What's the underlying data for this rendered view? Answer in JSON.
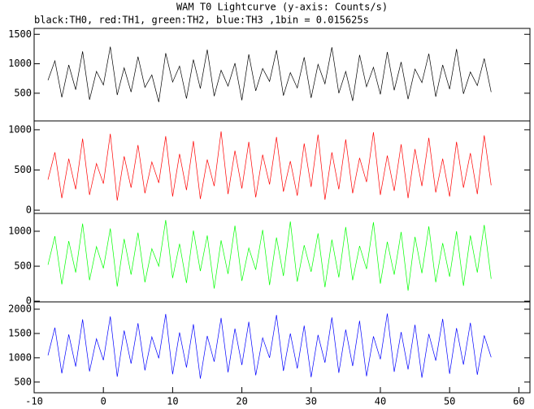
{
  "chart_data": [
    {
      "type": "line",
      "title": "WAM T0 Lightcurve (y-axis: Counts/s)",
      "subtitle": "black:TH0, red:TH1, green:TH2, blue:TH3 ,1bin = 0.015625s",
      "xlim": [
        -10,
        61.6
      ],
      "ylim": [
        30,
        1600
      ],
      "yticks": [
        500,
        1000,
        1500
      ],
      "x": [
        -8,
        -7,
        -6,
        -5,
        -4,
        -3,
        -2,
        -1,
        0,
        1,
        2,
        3,
        4,
        5,
        6,
        7,
        8,
        9,
        10,
        11,
        12,
        13,
        14,
        15,
        16,
        17,
        18,
        19,
        20,
        21,
        22,
        23,
        24,
        25,
        26,
        27,
        28,
        29,
        30,
        31,
        32,
        33,
        34,
        35,
        36,
        37,
        38,
        39,
        40,
        41,
        42,
        43,
        44,
        45,
        46,
        47,
        48,
        49,
        50,
        51,
        52,
        53,
        54,
        55,
        56
      ],
      "series": [
        {
          "color": "#000000",
          "values": [
            720,
            1050,
            430,
            980,
            560,
            1210,
            390,
            870,
            640,
            1290,
            470,
            930,
            520,
            1120,
            600,
            810,
            350,
            1180,
            690,
            960,
            410,
            1070,
            580,
            1240,
            450,
            890,
            620,
            1010,
            380,
            1160,
            540,
            920,
            700,
            1230,
            460,
            850,
            590,
            1110,
            420,
            990,
            660,
            1280,
            500,
            870,
            370,
            1150,
            610,
            940,
            480,
            1200,
            550,
            1030,
            400,
            910,
            680,
            1170,
            440,
            980,
            570,
            1250,
            490,
            860,
            630,
            1090,
            520
          ]
        }
      ]
    },
    {
      "type": "line",
      "xlim": [
        -10,
        61.6
      ],
      "ylim": [
        -40,
        1110
      ],
      "yticks": [
        0,
        500,
        1000
      ],
      "x": [
        -8,
        -7,
        -6,
        -5,
        -4,
        -3,
        -2,
        -1,
        0,
        1,
        2,
        3,
        4,
        5,
        6,
        7,
        8,
        9,
        10,
        11,
        12,
        13,
        14,
        15,
        16,
        17,
        18,
        19,
        20,
        21,
        22,
        23,
        24,
        25,
        26,
        27,
        28,
        29,
        30,
        31,
        32,
        33,
        34,
        35,
        36,
        37,
        38,
        39,
        40,
        41,
        42,
        43,
        44,
        45,
        46,
        47,
        48,
        49,
        50,
        51,
        52,
        53,
        54,
        55,
        56
      ],
      "series": [
        {
          "color": "#ff0000",
          "values": [
            380,
            720,
            150,
            640,
            260,
            890,
            190,
            580,
            330,
            950,
            120,
            670,
            280,
            810,
            210,
            600,
            340,
            920,
            170,
            700,
            250,
            860,
            140,
            630,
            300,
            980,
            200,
            740,
            270,
            850,
            160,
            690,
            320,
            910,
            230,
            610,
            180,
            830,
            290,
            940,
            130,
            720,
            260,
            880,
            210,
            650,
            350,
            970,
            190,
            680,
            240,
            820,
            150,
            760,
            300,
            900,
            220,
            640,
            170,
            850,
            280,
            710,
            200,
            930,
            310
          ]
        }
      ]
    },
    {
      "type": "line",
      "xlim": [
        -10,
        61.6
      ],
      "ylim": [
        -10,
        1255
      ],
      "yticks": [
        0,
        500,
        1000
      ],
      "x": [
        -8,
        -7,
        -6,
        -5,
        -4,
        -3,
        -2,
        -1,
        0,
        1,
        2,
        3,
        4,
        5,
        6,
        7,
        8,
        9,
        10,
        11,
        12,
        13,
        14,
        15,
        16,
        17,
        18,
        19,
        20,
        21,
        22,
        23,
        24,
        25,
        26,
        27,
        28,
        29,
        30,
        31,
        32,
        33,
        34,
        35,
        36,
        37,
        38,
        39,
        40,
        41,
        42,
        43,
        44,
        45,
        46,
        47,
        48,
        49,
        50,
        51,
        52,
        53,
        54,
        55,
        56
      ],
      "series": [
        {
          "color": "#00ff00",
          "values": [
            520,
            930,
            240,
            860,
            410,
            1110,
            300,
            780,
            470,
            1040,
            210,
            890,
            380,
            980,
            270,
            750,
            500,
            1160,
            330,
            820,
            260,
            1010,
            430,
            940,
            180,
            870,
            390,
            1080,
            290,
            760,
            450,
            1020,
            230,
            910,
            360,
            1140,
            280,
            800,
            420,
            970,
            200,
            880,
            340,
            1060,
            300,
            790,
            460,
            1130,
            250,
            850,
            380,
            990,
            150,
            920,
            400,
            1070,
            270,
            830,
            350,
            1000,
            220,
            940,
            410,
            1090,
            320
          ]
        }
      ]
    },
    {
      "type": "line",
      "xlim": [
        -10,
        61.6
      ],
      "ylim": [
        280,
        2150
      ],
      "yticks": [
        500,
        1000,
        1500,
        2000
      ],
      "xticks": [
        -10,
        0,
        10,
        20,
        30,
        40,
        50,
        60
      ],
      "x": [
        -8,
        -7,
        -6,
        -5,
        -4,
        -3,
        -2,
        -1,
        0,
        1,
        2,
        3,
        4,
        5,
        6,
        7,
        8,
        9,
        10,
        11,
        12,
        13,
        14,
        15,
        16,
        17,
        18,
        19,
        20,
        21,
        22,
        23,
        24,
        25,
        26,
        27,
        28,
        29,
        30,
        31,
        32,
        33,
        34,
        35,
        36,
        37,
        38,
        39,
        40,
        41,
        42,
        43,
        44,
        45,
        46,
        47,
        48,
        49,
        50,
        51,
        52,
        53,
        54,
        55,
        56
      ],
      "series": [
        {
          "color": "#0000ff",
          "values": [
            1050,
            1620,
            680,
            1480,
            820,
            1790,
            720,
            1390,
            950,
            1850,
            610,
            1560,
            880,
            1710,
            740,
            1430,
            990,
            1900,
            660,
            1520,
            800,
            1690,
            570,
            1450,
            920,
            1820,
            700,
            1600,
            850,
            1740,
            640,
            1410,
            1000,
            1880,
            730,
            1500,
            780,
            1660,
            600,
            1470,
            900,
            1830,
            690,
            1580,
            830,
            1760,
            620,
            1440,
            970,
            1910,
            710,
            1530,
            760,
            1680,
            590,
            1490,
            940,
            1800,
            670,
            1610,
            860,
            1720,
            650,
            1460,
            1010
          ]
        }
      ]
    }
  ]
}
